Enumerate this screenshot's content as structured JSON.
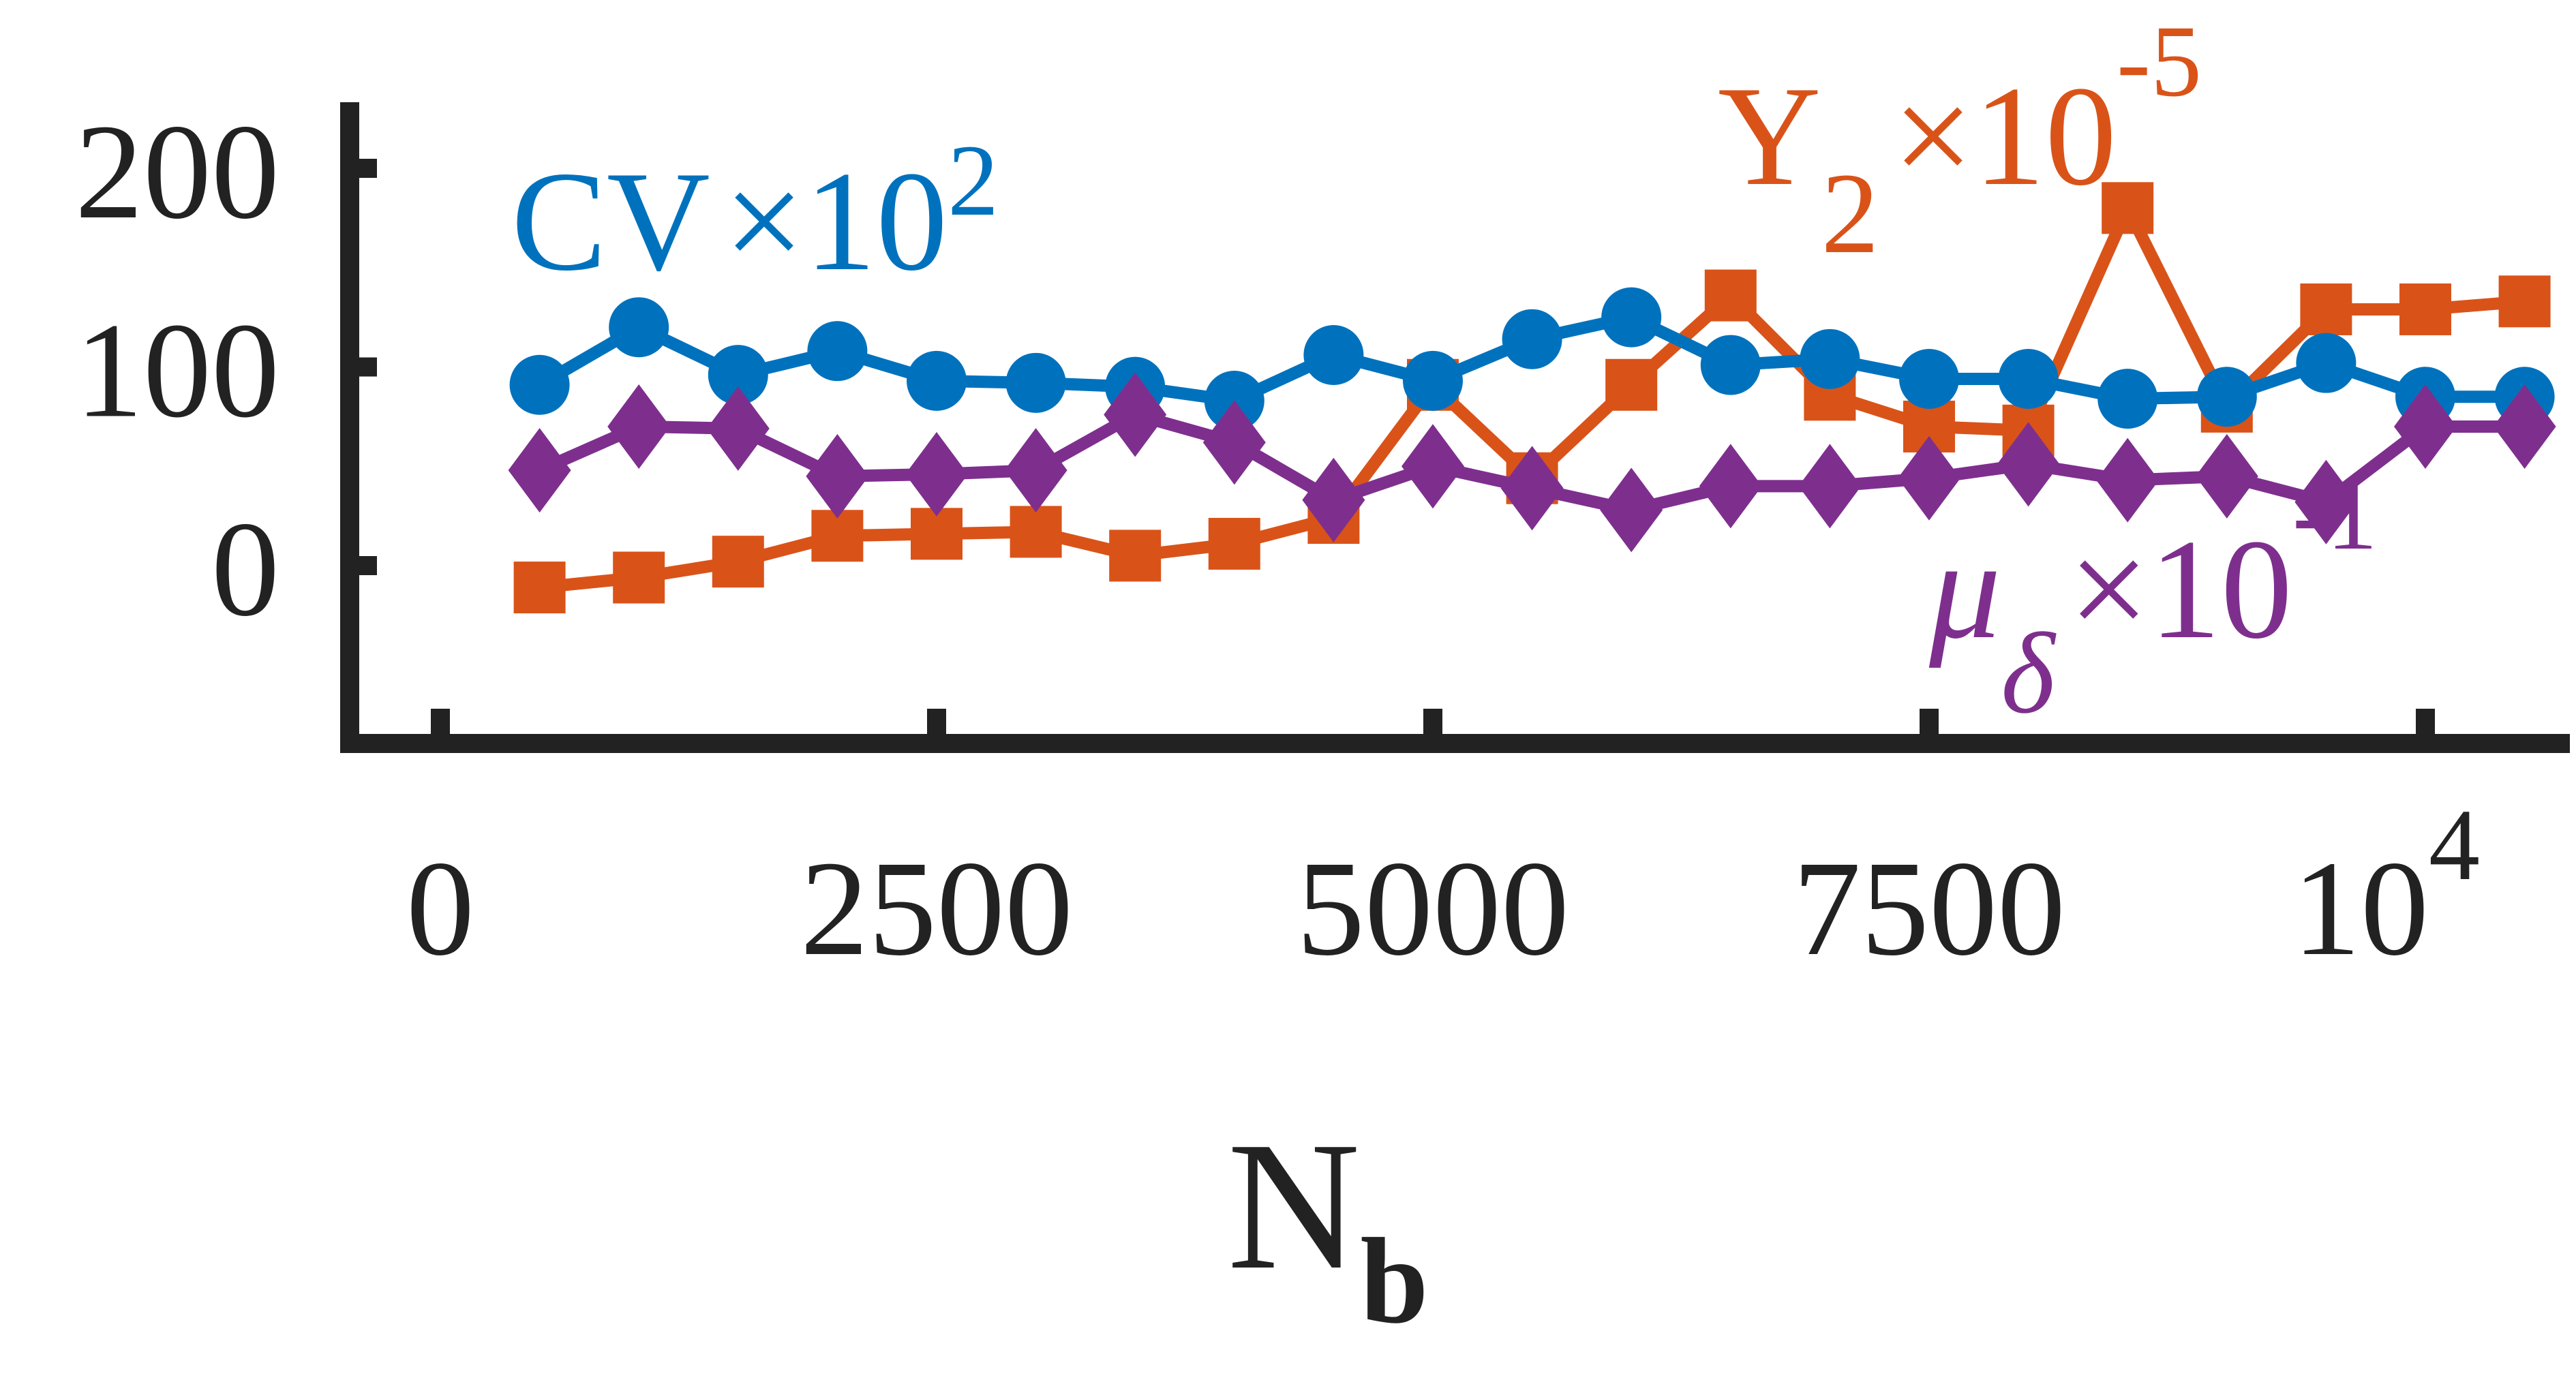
{
  "chart_data": {
    "type": "line",
    "xlabel": "N",
    "xlabel_sub": "b",
    "x_ticks": [
      "0",
      "2500",
      "5000",
      "7500",
      "10"
    ],
    "x_ticks_last_exponent": "4",
    "y_ticks": [
      "0",
      "100",
      "200"
    ],
    "xlim": [
      0,
      10000
    ],
    "ylim": [
      0,
      200
    ],
    "grid": false,
    "x": [
      500,
      1000,
      1500,
      2000,
      2500,
      3000,
      3500,
      4000,
      4500,
      5000,
      5500,
      6000,
      6500,
      7000,
      7500,
      8000,
      8500,
      9000,
      9500,
      10000,
      10500
    ],
    "series": [
      {
        "name": "CV",
        "multiplier": "×10",
        "exponent": "2",
        "color": "#0072BD",
        "marker": "circle",
        "values": [
          91,
          120,
          96,
          108,
          93,
          92,
          90,
          83,
          106,
          93,
          114,
          125,
          101,
          104,
          94,
          94,
          84,
          85,
          102,
          85,
          85
        ]
      },
      {
        "name": "Y",
        "subscript": "2",
        "multiplier": "×10",
        "exponent": "-5",
        "color": "#D95319",
        "marker": "square",
        "values": [
          -11,
          -6,
          2,
          15,
          16,
          17,
          5,
          11,
          24,
          91,
          44,
          91,
          136,
          86,
          70,
          68,
          180,
          80,
          129,
          129,
          133
        ]
      },
      {
        "name": "μ",
        "subscript": "δ",
        "multiplier": "×10",
        "exponent": "-1",
        "color": "#7E2F8E",
        "marker": "diamond",
        "values": [
          48,
          70,
          69,
          45,
          46,
          48,
          76,
          62,
          33,
          50,
          39,
          28,
          40,
          40,
          44,
          51,
          43,
          45,
          32,
          70,
          70
        ]
      }
    ]
  }
}
